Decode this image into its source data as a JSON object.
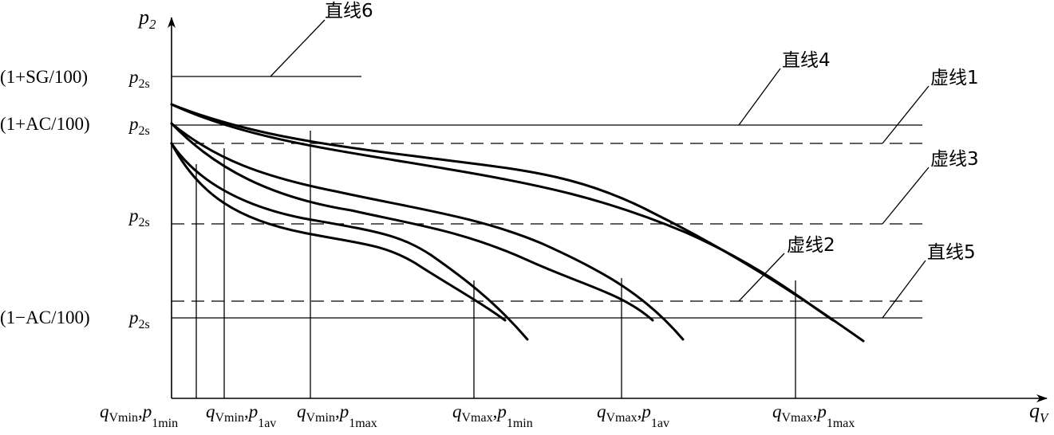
{
  "axes": {
    "y_label": {
      "base": "p",
      "sub": "2"
    },
    "x_label": {
      "base": "q",
      "sub": "V"
    }
  },
  "y_ticks": [
    {
      "prefix": "(1+SG/100)",
      "sym": "p",
      "sub": "2s"
    },
    {
      "prefix": "(1+AC/100)",
      "sym": "p",
      "sub": "2s"
    },
    {
      "prefix": "",
      "sym": "p",
      "sub": "2s"
    },
    {
      "prefix": "(1−AC/100)",
      "sym": "p",
      "sub": "2s"
    }
  ],
  "x_ticks": [
    {
      "q": "q",
      "qsub": "Vmin",
      "p": "p",
      "psub": "1min"
    },
    {
      "q": "q",
      "qsub": "Vmin",
      "p": "p",
      "psub": "1av"
    },
    {
      "q": "q",
      "qsub": "Vmin",
      "p": "p",
      "psub": "1max"
    },
    {
      "q": "q",
      "qsub": "Vmax",
      "p": "p",
      "psub": "1min"
    },
    {
      "q": "q",
      "qsub": "Vmax",
      "p": "p",
      "psub": "1av"
    },
    {
      "q": "q",
      "qsub": "Vmax",
      "p": "p",
      "psub": "1max"
    }
  ],
  "line_labels": {
    "line6": "直线6",
    "line4": "直线4",
    "dash1": "虚线1",
    "dash3": "虚线3",
    "dash2": "虚线2",
    "line5": "直线5"
  },
  "colors": {
    "ink": "#000000",
    "background": "#ffffff"
  }
}
